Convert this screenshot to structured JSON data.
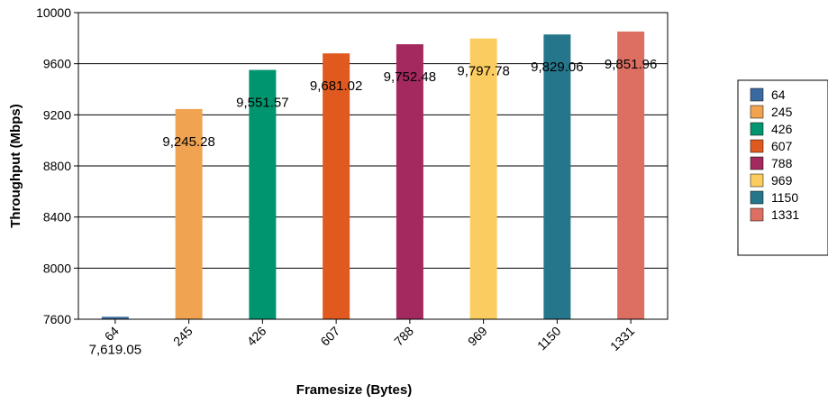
{
  "chart_data": {
    "type": "bar",
    "categories": [
      "64",
      "245",
      "426",
      "607",
      "788",
      "969",
      "1150",
      "1331"
    ],
    "values": [
      7619.05,
      9245.28,
      9551.57,
      9681.02,
      9752.48,
      9797.78,
      9829.06,
      9851.96
    ],
    "data_labels": [
      "7,619.05",
      "9,245.28",
      "9,551.57",
      "9,681.02",
      "9,752.48",
      "9,797.78",
      "9,829.06",
      "9,851.96"
    ],
    "colors": [
      "#3b6aa0",
      "#f0a351",
      "#00956e",
      "#e05a1f",
      "#a3295f",
      "#fbcc5f",
      "#25758b",
      "#dc6f61"
    ],
    "xlabel": "Framesize (Bytes)",
    "ylabel": "Throughput (Mbps)",
    "ylim": [
      7600,
      10000
    ],
    "yticks": [
      7600,
      8000,
      8400,
      8800,
      9200,
      9600,
      10000
    ],
    "ytick_labels": [
      "7600",
      "8000",
      "8400",
      "8800",
      "9200",
      "9600",
      "10000"
    ],
    "grid": true,
    "legend": {
      "placement": "right",
      "entries": [
        "64",
        "245",
        "426",
        "607",
        "788",
        "969",
        "1150",
        "1331"
      ]
    }
  }
}
